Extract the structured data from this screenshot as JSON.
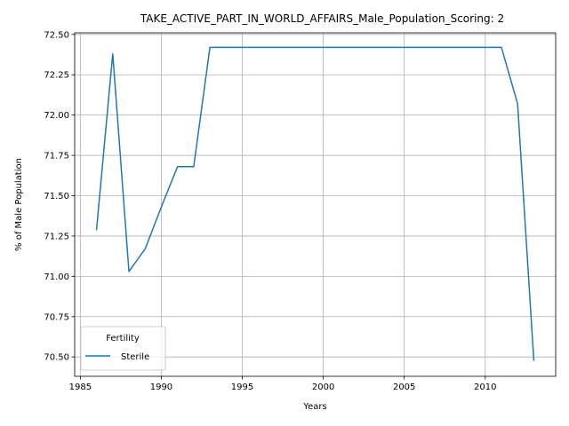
{
  "chart_data": {
    "type": "line",
    "title": "TAKE_ACTIVE_PART_IN_WORLD_AFFAIRS_Male_Population_Scoring: 2",
    "xlabel": "Years",
    "ylabel": "% of Male Population",
    "xlim": [
      1984.65,
      2014.35
    ],
    "ylim": [
      70.38,
      72.51
    ],
    "xticks": [
      1985,
      1990,
      1995,
      2000,
      2005,
      2010
    ],
    "yticks": [
      70.5,
      70.75,
      71.0,
      71.25,
      71.5,
      71.75,
      72.0,
      72.25,
      72.5
    ],
    "grid": true,
    "legend": {
      "title": "Fertility",
      "placement": "lower-left"
    },
    "series": [
      {
        "name": "Sterile",
        "color": "#1f77b4",
        "x": [
          1986,
          1987,
          1988,
          1989,
          1990,
          1991,
          1992,
          1993,
          1994,
          1995,
          1996,
          1997,
          1998,
          1999,
          2000,
          2001,
          2002,
          2003,
          2004,
          2005,
          2006,
          2007,
          2008,
          2009,
          2010,
          2011,
          2012,
          2013
        ],
        "y": [
          71.29,
          72.38,
          71.03,
          71.17,
          71.43,
          71.68,
          71.68,
          72.42,
          72.42,
          72.42,
          72.42,
          72.42,
          72.42,
          72.42,
          72.42,
          72.42,
          72.42,
          72.42,
          72.42,
          72.42,
          72.42,
          72.42,
          72.42,
          72.42,
          72.42,
          72.42,
          72.07,
          70.48
        ]
      }
    ]
  }
}
